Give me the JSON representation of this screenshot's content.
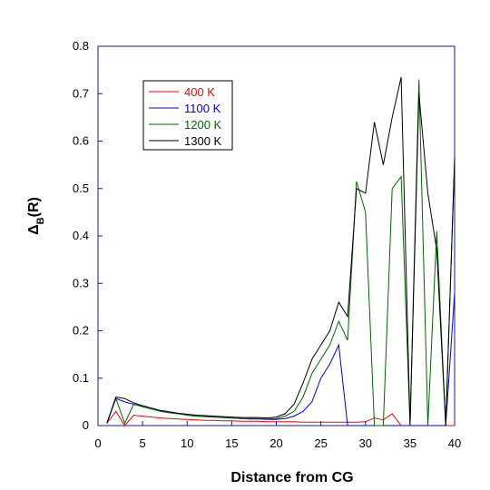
{
  "chart_data": {
    "type": "line",
    "xlabel": "Distance from CG",
    "ylabel": "Δ_B(R)",
    "ylabel_main": "Δ",
    "ylabel_sub": "B",
    "ylabel_tail": "(R)",
    "xlim": [
      0,
      40
    ],
    "ylim": [
      0,
      0.8
    ],
    "xticks": [
      0,
      5,
      10,
      15,
      20,
      25,
      30,
      35,
      40
    ],
    "yticks": [
      0,
      0.1,
      0.2,
      0.3,
      0.4,
      0.5,
      0.6,
      0.7,
      0.8
    ],
    "grid": false,
    "legend_position": "top-left",
    "x": [
      1,
      2,
      3,
      4,
      5,
      6,
      7,
      8,
      9,
      10,
      11,
      12,
      13,
      14,
      15,
      16,
      17,
      18,
      19,
      20,
      21,
      22,
      23,
      24,
      25,
      26,
      27,
      28,
      29,
      30,
      31,
      32,
      33,
      34,
      35,
      36,
      37,
      38,
      39,
      40
    ],
    "series": [
      {
        "name": "400 K",
        "color": "#ff0000",
        "values": [
          0.005,
          0.03,
          0,
          0.022,
          0.02,
          0.018,
          0.016,
          0.015,
          0.014,
          0.013,
          0.012,
          0.011,
          0.011,
          0.01,
          0.01,
          0.009,
          0.009,
          0.009,
          0.008,
          0.008,
          0.008,
          0.008,
          0.007,
          0.007,
          0.007,
          0.007,
          0.007,
          0.007,
          0.007,
          0.008,
          0.016,
          0.012,
          0.025,
          0,
          0,
          0,
          0,
          0,
          0,
          0
        ]
      },
      {
        "name": "1100 K",
        "color": "#0000cc",
        "values": [
          0.005,
          0.057,
          0.05,
          0.045,
          0.04,
          0.035,
          0.03,
          0.027,
          0.025,
          0.022,
          0.02,
          0.019,
          0.018,
          0.017,
          0.016,
          0.015,
          0.014,
          0.014,
          0.013,
          0.013,
          0.015,
          0.02,
          0.03,
          0.05,
          0.1,
          0.13,
          0.17,
          0,
          0,
          0,
          0,
          0,
          0,
          0,
          0,
          0,
          0,
          0,
          0,
          0.28
        ]
      },
      {
        "name": "1200 K",
        "color": "#006600",
        "values": [
          0.005,
          0.057,
          0.005,
          0.045,
          0.04,
          0.035,
          0.03,
          0.027,
          0.025,
          0.022,
          0.02,
          0.019,
          0.018,
          0.017,
          0.016,
          0.015,
          0.015,
          0.015,
          0.014,
          0.015,
          0.02,
          0.03,
          0.06,
          0.11,
          0.14,
          0.17,
          0.22,
          0.18,
          0.515,
          0.45,
          0,
          0,
          0.5,
          0.525,
          0,
          0.73,
          0,
          0.41,
          0,
          0.56
        ]
      },
      {
        "name": "1300 K",
        "color": "#000000",
        "values": [
          0.005,
          0.06,
          0.057,
          0.048,
          0.042,
          0.037,
          0.032,
          0.029,
          0.026,
          0.024,
          0.022,
          0.021,
          0.02,
          0.019,
          0.018,
          0.017,
          0.017,
          0.017,
          0.016,
          0.018,
          0.025,
          0.045,
          0.09,
          0.14,
          0.17,
          0.2,
          0.26,
          0.23,
          0.5,
          0.49,
          0.64,
          0.55,
          0.65,
          0.735,
          0,
          0.7,
          0.49,
          0.37,
          0,
          0.565
        ]
      }
    ]
  }
}
